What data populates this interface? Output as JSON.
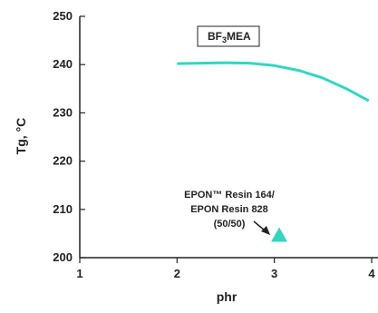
{
  "chart_data": {
    "type": "line",
    "xlabel": "phr",
    "ylabel": "Tg, °C",
    "xlim": [
      1,
      4
    ],
    "ylim": [
      200,
      250
    ],
    "x_ticks": [
      "1",
      "2",
      "3",
      "4"
    ],
    "y_ticks": [
      "200",
      "210",
      "220",
      "230",
      "240",
      "250"
    ],
    "grid": false,
    "legend": {
      "box_label_main": "BF",
      "box_label_sub": "3",
      "box_label_tail": "MEA"
    },
    "series": [
      {
        "color": "#33d6c0",
        "x": [
          2.0,
          2.25,
          2.5,
          2.75,
          3.0,
          3.25,
          3.5,
          3.75,
          3.97
        ],
        "y": [
          240.2,
          240.3,
          240.4,
          240.3,
          239.8,
          238.8,
          237.2,
          234.9,
          232.5
        ]
      }
    ],
    "points": [
      {
        "x": 3.05,
        "y": 204.5,
        "marker": "triangle",
        "color": "#33d6c0"
      }
    ],
    "annotation": {
      "lines": [
        "EPON™ Resin 164/",
        "EPON Resin 828",
        "(50/50)"
      ]
    }
  }
}
